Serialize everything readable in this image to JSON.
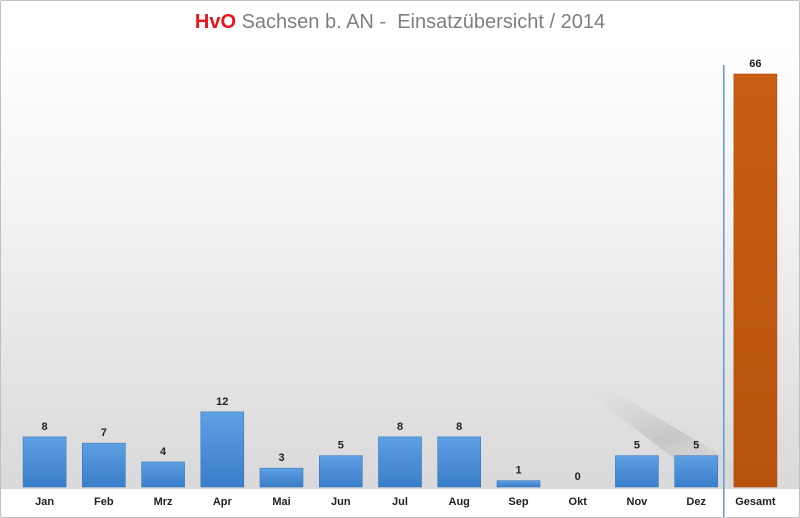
{
  "title": {
    "highlight": "HvO",
    "rest": " Sachsen b. AN -  Einsatzübersicht / 2014"
  },
  "colors": {
    "month_bar": "#4a8fd8",
    "total_bar": "#c55a11",
    "title_accent": "#e8161b",
    "title_text": "#7f7f7f",
    "divider": "#5a9bd5"
  },
  "chart_data": {
    "type": "bar",
    "title": "HvO Sachsen b. AN -  Einsatzübersicht / 2014",
    "categories": [
      "Jan",
      "Feb",
      "Mrz",
      "Apr",
      "Mai",
      "Jun",
      "Jul",
      "Aug",
      "Sep",
      "Okt",
      "Nov",
      "Dez",
      "Gesamt"
    ],
    "values": [
      8,
      7,
      4,
      12,
      3,
      5,
      8,
      8,
      1,
      0,
      5,
      5,
      66
    ],
    "ylim": [
      0,
      66
    ],
    "grid": false,
    "data_labels": true
  }
}
